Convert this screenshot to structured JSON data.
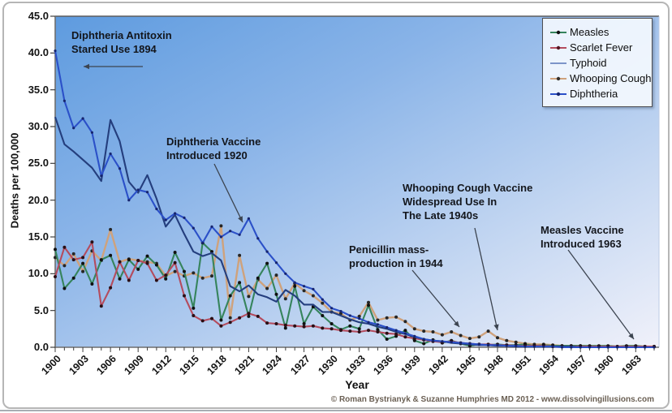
{
  "y_axis": {
    "title": "Deaths per 100,000",
    "tick_labels": [
      "45.0",
      "40.0",
      "35.0",
      "30.0",
      "25.0",
      "20.0",
      "15.0",
      "10.0",
      "5.0",
      "0.0"
    ]
  },
  "x_axis": {
    "title": "Year",
    "tick_labels": [
      "1900",
      "1903",
      "1906",
      "1909",
      "1912",
      "1915",
      "1918",
      "1921",
      "1924",
      "1927",
      "1930",
      "1933",
      "1936",
      "1939",
      "1942",
      "1945",
      "1948",
      "1951",
      "1954",
      "1957",
      "1960",
      "1963"
    ]
  },
  "legend": {
    "items": [
      {
        "label": "Measles",
        "line_color": "#36845c",
        "marker_color": "#101010",
        "marker": "dot"
      },
      {
        "label": "Scarlet Fever",
        "line_color": "#b44c5e",
        "marker_color": "#551522",
        "marker": "dot"
      },
      {
        "label": "Typhoid",
        "line_color": "#7d95c9",
        "marker_color": "",
        "marker": "none"
      },
      {
        "label": "Whooping Cough",
        "line_color": "#cfa27c",
        "marker_color": "#33302c",
        "marker": "dot"
      },
      {
        "label": "Diphtheria",
        "line_color": "#2b50c8",
        "marker_color": "#16246e",
        "marker": "dot"
      }
    ]
  },
  "annotations": [
    {
      "id": "diphtheria-antitoxin",
      "text": "Diphtheria Antitoxin\nStarted Use 1894"
    },
    {
      "id": "diphtheria-vaccine",
      "text": "Diphtheria Vaccine\nIntroduced 1920"
    },
    {
      "id": "whooping-cough-vaccine",
      "text": "Whooping Cough Vaccine\nWidespread Use In\nThe Late 1940s"
    },
    {
      "id": "penicillin",
      "text": "Penicillin mass-\nproduction in 1944"
    },
    {
      "id": "measles-vaccine",
      "text": "Measles Vaccine\nIntroduced 1963"
    }
  ],
  "footer": {
    "credit": "© Roman Bystrianyk & Suzanne Humphries MD 2012 - www.dissolvingillusions.com"
  },
  "colors": {
    "plot_gradient": [
      "#5e9bdf",
      "#8ab4e8",
      "#c6d8f2",
      "#f0f1fa"
    ],
    "axis_line": "#5d5d5d",
    "tick": "#3f3f3f",
    "plot_right_border": "#bccbe4",
    "pointer_line": "#3c4450",
    "frame_border": "#b6b6b6"
  },
  "chart_data": {
    "type": "line",
    "title": "",
    "xlabel": "Year",
    "ylabel": "Deaths per 100,000",
    "ylim": [
      0,
      45
    ],
    "xlim": [
      1900,
      1965
    ],
    "grid": false,
    "legend_position": "top-right",
    "x": [
      1900,
      1901,
      1902,
      1903,
      1904,
      1905,
      1906,
      1907,
      1908,
      1909,
      1910,
      1911,
      1912,
      1913,
      1914,
      1915,
      1916,
      1917,
      1918,
      1919,
      1920,
      1921,
      1922,
      1923,
      1924,
      1925,
      1926,
      1927,
      1928,
      1929,
      1930,
      1931,
      1932,
      1933,
      1934,
      1935,
      1936,
      1937,
      1938,
      1939,
      1940,
      1941,
      1942,
      1943,
      1944,
      1945,
      1946,
      1947,
      1948,
      1949,
      1950,
      1951,
      1952,
      1953,
      1954,
      1955,
      1956,
      1957,
      1958,
      1959,
      1960,
      1961,
      1962,
      1963,
      1964,
      1965
    ],
    "series": [
      {
        "name": "Measles",
        "color": "#36845c",
        "marker": "dot",
        "marker_color": "#101010",
        "zorder": 2,
        "values": [
          13.3,
          8.0,
          9.4,
          11.4,
          8.6,
          11.9,
          12.5,
          9.3,
          11.9,
          10.6,
          12.4,
          11.2,
          9.3,
          12.9,
          10.3,
          5.3,
          14.2,
          13.0,
          3.7,
          7.0,
          8.8,
          4.2,
          9.4,
          11.4,
          7.2,
          2.6,
          8.3,
          3.2,
          5.5,
          4.3,
          3.2,
          2.4,
          2.9,
          2.5,
          5.7,
          2.4,
          1.1,
          1.5,
          2.3,
          0.9,
          0.5,
          1.0,
          0.6,
          0.9,
          0.5,
          0.2,
          0.4,
          0.3,
          0.4,
          0.3,
          0.3,
          0.4,
          0.2,
          0.3,
          0.2,
          0.2,
          0.2,
          0.2,
          0.2,
          0.2,
          0.2,
          0.1,
          0.2,
          0.2,
          0.1,
          0.1
        ]
      },
      {
        "name": "Scarlet Fever",
        "color": "#b44c5e",
        "marker": "dot",
        "marker_color": "#2a0e14",
        "zorder": 3,
        "values": [
          9.6,
          13.6,
          11.9,
          12.2,
          14.3,
          5.6,
          8.1,
          11.6,
          9.1,
          11.8,
          11.4,
          9.1,
          9.8,
          11.5,
          7.0,
          4.3,
          3.6,
          3.9,
          2.9,
          3.4,
          4.0,
          4.6,
          4.2,
          3.3,
          3.2,
          3.0,
          2.9,
          2.8,
          2.9,
          2.6,
          2.5,
          2.3,
          2.2,
          2.1,
          2.3,
          2.1,
          1.9,
          1.8,
          1.4,
          1.2,
          1.0,
          0.8,
          0.7,
          0.8,
          0.6,
          0.5,
          0.4,
          0.4,
          0.3,
          0.3,
          0.2,
          0.2,
          0.2,
          0.2,
          0.1,
          0.1,
          0.1,
          0.1,
          0.1,
          0.1,
          0.1,
          0.1,
          0.1,
          0.1,
          0.1,
          0.1
        ]
      },
      {
        "name": "Typhoid",
        "color": "#243e7d",
        "marker": "none",
        "marker_color": "",
        "zorder": 4,
        "values": [
          31.3,
          27.6,
          26.6,
          25.5,
          24.4,
          22.6,
          30.9,
          28.0,
          22.5,
          21.0,
          23.4,
          20.2,
          16.4,
          18.0,
          15.4,
          13.0,
          12.4,
          12.8,
          11.8,
          8.3,
          7.6,
          8.4,
          7.2,
          6.8,
          6.2,
          7.8,
          7.0,
          5.8,
          5.8,
          4.8,
          4.8,
          4.3,
          3.8,
          3.4,
          3.2,
          2.8,
          2.5,
          2.1,
          1.8,
          1.4,
          1.1,
          0.9,
          0.8,
          0.6,
          0.5,
          0.4,
          0.3,
          0.3,
          0.2,
          0.2,
          0.1,
          0.1,
          0.1,
          0.1,
          0.1,
          0.1,
          0.1,
          0.0,
          0.0,
          0.0,
          0.0,
          0.0,
          0.0,
          0.0,
          0.0,
          0.0
        ]
      },
      {
        "name": "Whooping Cough",
        "color": "#cfa27c",
        "marker": "dot",
        "marker_color": "#262626",
        "zorder": 1,
        "values": [
          12.2,
          11.1,
          12.7,
          10.3,
          13.1,
          11.8,
          16.0,
          11.6,
          12.0,
          11.8,
          11.6,
          11.4,
          9.7,
          10.3,
          9.7,
          10.1,
          9.4,
          9.7,
          16.5,
          4.0,
          12.5,
          6.9,
          9.2,
          8.0,
          9.8,
          6.6,
          8.7,
          7.7,
          7.0,
          6.0,
          4.8,
          4.6,
          3.7,
          4.2,
          6.1,
          3.7,
          4.0,
          4.1,
          3.5,
          2.5,
          2.2,
          2.1,
          1.7,
          2.1,
          1.6,
          1.2,
          1.4,
          2.2,
          1.3,
          0.9,
          0.7,
          0.5,
          0.4,
          0.4,
          0.3,
          0.2,
          0.2,
          0.2,
          0.1,
          0.1,
          0.1,
          0.1,
          0.1,
          0.1,
          0.1,
          0.1
        ]
      },
      {
        "name": "Diphtheria",
        "color": "#2b50c8",
        "marker": "dot",
        "marker_color": "#16246e",
        "zorder": 5,
        "values": [
          40.3,
          33.5,
          29.8,
          31.1,
          29.2,
          23.3,
          26.3,
          24.3,
          20.0,
          21.4,
          21.1,
          18.8,
          17.3,
          18.2,
          17.6,
          16.2,
          14.2,
          16.4,
          15.0,
          15.8,
          15.3,
          17.5,
          14.8,
          13.0,
          11.5,
          10.0,
          8.8,
          8.3,
          7.9,
          6.5,
          5.3,
          4.9,
          4.3,
          3.9,
          3.4,
          3.1,
          2.7,
          2.3,
          1.9,
          1.5,
          1.1,
          0.9,
          0.8,
          0.7,
          0.6,
          0.5,
          0.4,
          0.3,
          0.3,
          0.2,
          0.2,
          0.1,
          0.1,
          0.1,
          0.1,
          0.0,
          0.0,
          0.0,
          0.0,
          0.0,
          0.0,
          0.0,
          0.0,
          0.0,
          0.0,
          0.0
        ]
      }
    ]
  }
}
